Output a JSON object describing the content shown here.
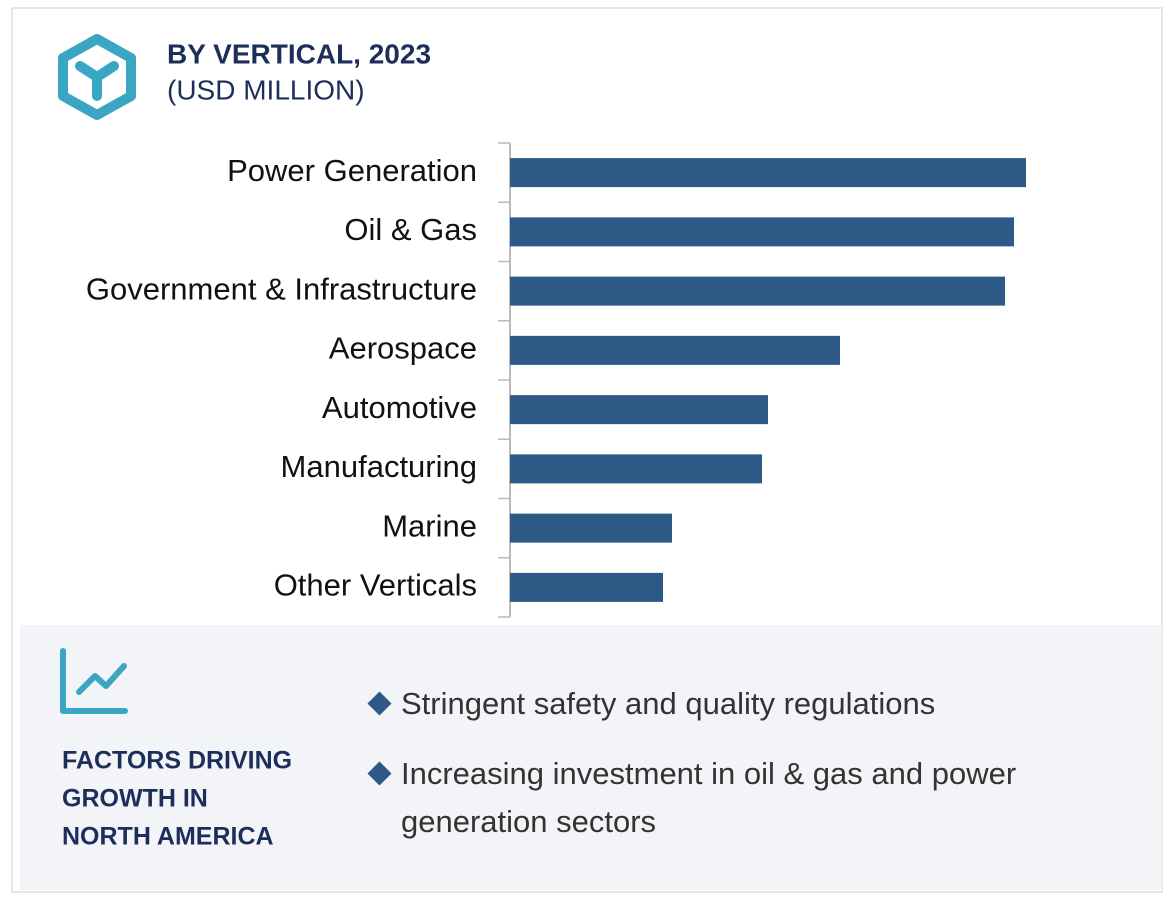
{
  "chart_data": {
    "type": "bar",
    "orientation": "horizontal",
    "title": "BY VERTICAL, 2023",
    "subtitle": "(USD MILLION)",
    "categories": [
      "Power Generation",
      "Oil & Gas",
      "Government & Infrastructure",
      "Aerospace",
      "Automotive",
      "Manufacturing",
      "Marine",
      "Other Verticals"
    ],
    "values": [
      86,
      84,
      82.5,
      55,
      43,
      42,
      27,
      25.5
    ],
    "xlim": [
      0,
      100
    ],
    "color": "#2d5986"
  },
  "factors": {
    "title": [
      "FACTORS DRIVING",
      "GROWTH IN",
      "NORTH AMERICA"
    ],
    "items": [
      "Stringent safety and quality regulations",
      "Increasing investment in oil & gas and power generation sectors"
    ]
  }
}
